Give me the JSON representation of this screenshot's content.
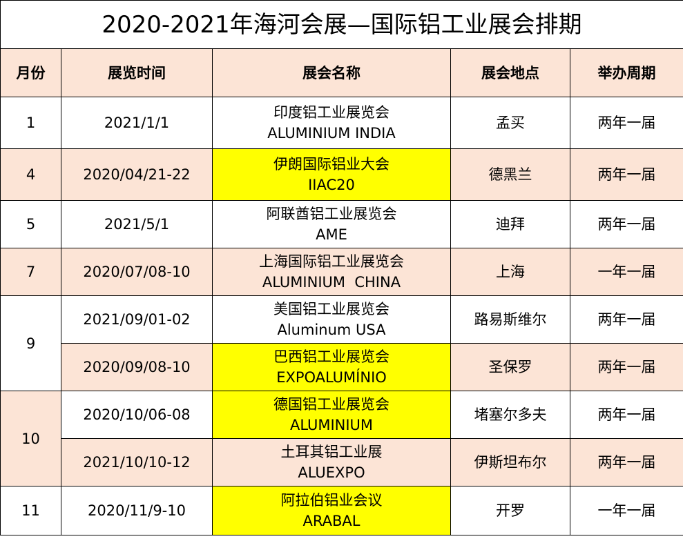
{
  "title": "2020-2021年海河会展—国际铝工业展会排期",
  "headers": [
    "月份",
    "展览时间",
    "展会名称",
    "展会地点",
    "举办周期"
  ],
  "colors": {
    "header_bg": "#fce4d6",
    "alt_row_bg": "#fce4d6",
    "highlight": "#ffff00"
  },
  "rows": [
    {
      "month": "1",
      "month_span": 1,
      "date": "2021/1/1",
      "name_cn": "印度铝工业展览会",
      "name_en": "ALUMINIUM INDIA",
      "location": "孟买",
      "cycle": "两年一届",
      "highlight": false,
      "shade": false,
      "height": 75
    },
    {
      "month": "4",
      "month_span": 1,
      "date": "2020/04/21-22",
      "name_cn": "伊朗国际铝业大会",
      "name_en": "IIAC20",
      "location": "德黑兰",
      "cycle": "两年一届",
      "highlight": true,
      "shade": true,
      "height": 75
    },
    {
      "month": "5",
      "month_span": 1,
      "date": "2021/5/1",
      "name_cn": "阿联酋铝工业展览会",
      "name_en": "AME",
      "location": "迪拜",
      "cycle": "两年一届",
      "highlight": false,
      "shade": false,
      "height": 69
    },
    {
      "month": "7",
      "month_span": 1,
      "date": "2020/07/08-10",
      "name_cn": "上海国际铝工业展览会",
      "name_en": "ALUMINIUM  CHINA",
      "location": "上海",
      "cycle": "一年一届",
      "highlight": false,
      "shade": true,
      "height": 69
    },
    {
      "month": "9",
      "month_span": 2,
      "date": "2021/09/01-02",
      "name_cn": "美国铝工业展览会",
      "name_en": "Aluminum USA",
      "location": "路易斯维尔",
      "cycle": "两年一届",
      "highlight": false,
      "shade": false,
      "height": 69
    },
    {
      "month": null,
      "date": "2020/09/08-10",
      "name_cn": "巴西铝工业展览会",
      "name_en": "EXPOALUMÍNIO",
      "location": "圣保罗",
      "cycle": "两年一届",
      "highlight": true,
      "shade": true,
      "height": 69
    },
    {
      "month": "10",
      "month_span": 2,
      "month_shade": true,
      "date": "2020/10/06-08",
      "name_cn": "德国铝工业展览会",
      "name_en": "ALUMINIUM",
      "location": "堵塞尔多夫",
      "cycle": "两年一届",
      "highlight": true,
      "shade": false,
      "height": 69
    },
    {
      "month": null,
      "date": "2021/10/10-12",
      "name_cn": "土耳其铝工业展",
      "name_en": "ALUEXPO",
      "location": "伊斯坦布尔",
      "cycle": "两年一届",
      "highlight": false,
      "shade": true,
      "height": 69
    },
    {
      "month": "11",
      "month_span": 1,
      "date": "2020/11/9-10",
      "name_cn": "阿拉伯铝业会议",
      "name_en": "ARABAL",
      "location": "开罗",
      "cycle": "一年一届",
      "highlight": true,
      "shade": false,
      "height": 71
    }
  ]
}
